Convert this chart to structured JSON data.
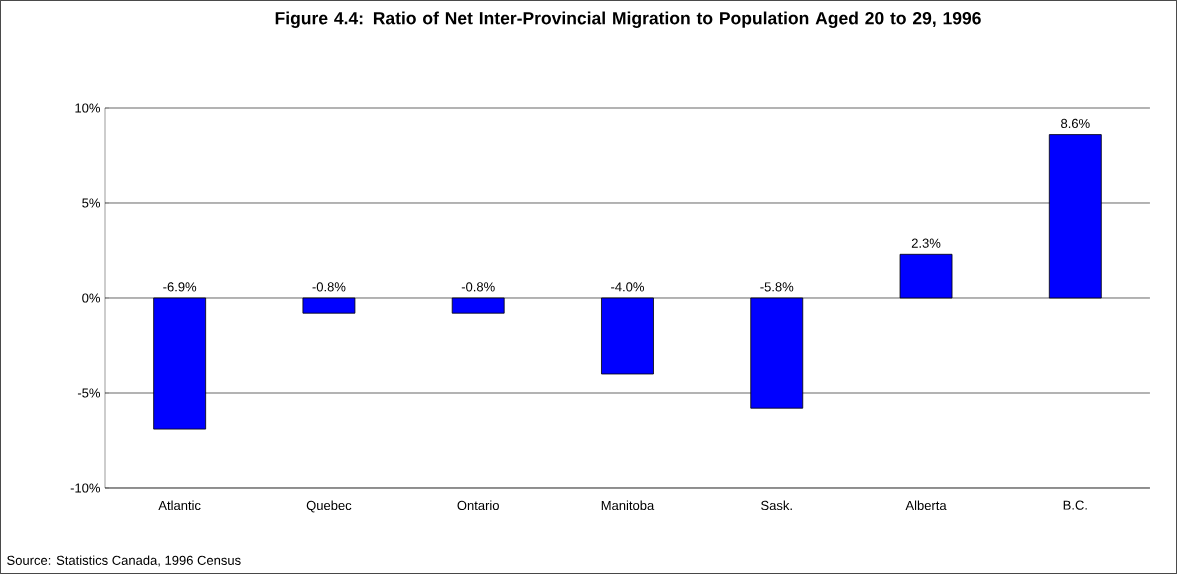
{
  "chart_data": {
    "type": "bar",
    "title": "Figure 4.4:  Ratio of Net Inter-Provincial Migration to Population Aged 20 to 29, 1996",
    "categories": [
      "Atlantic",
      "Quebec",
      "Ontario",
      "Manitoba",
      "Sask.",
      "Alberta",
      "B.C."
    ],
    "values": [
      -6.9,
      -0.8,
      -0.8,
      -4.0,
      -5.8,
      2.3,
      8.6
    ],
    "value_labels": [
      "-6.9%",
      "-0.8%",
      "-0.8%",
      "-4.0%",
      "-5.8%",
      "2.3%",
      "8.6%"
    ],
    "color": "#0000ff",
    "ylim": [
      -10,
      10
    ],
    "yticks": [
      {
        "value": -10,
        "label": "-10%"
      },
      {
        "value": -5,
        "label": "-5%"
      },
      {
        "value": 0,
        "label": "0%"
      },
      {
        "value": 5,
        "label": "5%"
      },
      {
        "value": 10,
        "label": "10%"
      }
    ],
    "grid": "y",
    "annotations": [
      "Source:  Statistics Canada, 1996 Census"
    ]
  }
}
